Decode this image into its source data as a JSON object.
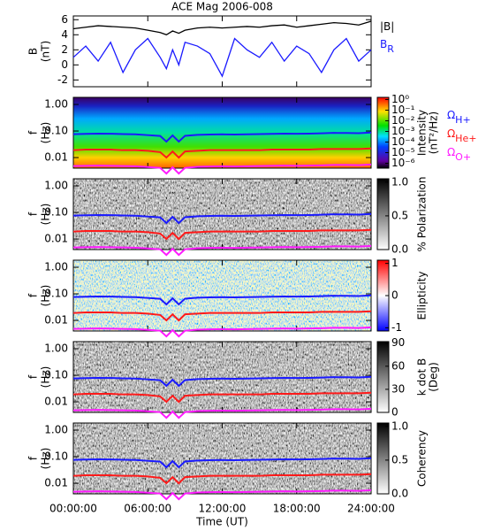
{
  "chart_data": [
    {
      "type": "line",
      "title": "ACE Mag 2006-008",
      "ylabel": [
        "B",
        "(nT)"
      ],
      "x": [
        0,
        1,
        2,
        3,
        4,
        5,
        6,
        7,
        7.5,
        8,
        8.5,
        9,
        10,
        11,
        12,
        13,
        14,
        15,
        16,
        17,
        18,
        19,
        20,
        21,
        22,
        23,
        24
      ],
      "xlim": [
        0,
        24
      ],
      "xticks": [
        0,
        6,
        12,
        18,
        24
      ],
      "ylim": [
        -2.9,
        6.5
      ],
      "yticks": [
        -2,
        0,
        2,
        4,
        6
      ],
      "series": [
        {
          "name": "|B|",
          "color": "#000000",
          "values": [
            4.8,
            5.0,
            5.2,
            5.1,
            5.0,
            4.9,
            4.6,
            4.3,
            4.0,
            4.5,
            4.2,
            4.6,
            4.9,
            5.0,
            4.9,
            5.0,
            5.1,
            5.0,
            5.2,
            5.3,
            5.0,
            5.2,
            5.4,
            5.6,
            5.5,
            5.3,
            5.8
          ]
        },
        {
          "name": "B",
          "name_sub": "R",
          "color": "#1a1aff",
          "values": [
            1.0,
            2.5,
            0.5,
            3.0,
            -1.0,
            2.0,
            3.5,
            1.0,
            -0.5,
            2.0,
            0.0,
            3.0,
            2.5,
            1.5,
            -1.5,
            3.5,
            2.0,
            1.0,
            3.0,
            0.5,
            2.5,
            1.5,
            -1.0,
            2.0,
            3.5,
            0.5,
            2.0
          ]
        }
      ]
    },
    {
      "type": "spectrogram",
      "ylabel": [
        "f",
        "(Hz)"
      ],
      "log_y": true,
      "colormap": "rainbow",
      "x": [
        0,
        1,
        2,
        3,
        4,
        5,
        6,
        7,
        7.5,
        8,
        8.5,
        9,
        10,
        11,
        12,
        13,
        14,
        15,
        16,
        17,
        18,
        19,
        20,
        21,
        22,
        23,
        24
      ],
      "xlim": [
        0,
        24
      ],
      "xticks": [
        0,
        6,
        12,
        18,
        24
      ],
      "ylim": [
        0.004,
        1.85
      ],
      "yticks": [
        {
          "value": 1,
          "label": "1.00"
        },
        {
          "value": 0.1,
          "label": "0.10"
        },
        {
          "value": 0.01,
          "label": "0.01"
        }
      ],
      "clabel": [
        "Intensity",
        "(nT²/Hz)"
      ],
      "clim": [
        3.5e-07,
        1.6
      ],
      "log_c": true,
      "cticks": [
        {
          "value": 1,
          "label": "10⁰"
        },
        {
          "value": 0.1,
          "label": "10⁻¹"
        },
        {
          "value": 0.01,
          "label": "10⁻²"
        },
        {
          "value": 0.001,
          "label": "10⁻³"
        },
        {
          "value": 0.0001,
          "label": "10⁻⁴"
        },
        {
          "value": 1e-05,
          "label": "10⁻⁵"
        },
        {
          "value": 1e-06,
          "label": "10⁻⁶"
        }
      ],
      "series": [
        {
          "name": "Ω",
          "name_sub": "H+",
          "color": "#1a1aff",
          "values": [
            0.076,
            0.078,
            0.08,
            0.079,
            0.077,
            0.075,
            0.07,
            0.065,
            0.04,
            0.068,
            0.04,
            0.066,
            0.072,
            0.074,
            0.075,
            0.074,
            0.075,
            0.077,
            0.078,
            0.08,
            0.079,
            0.08,
            0.082,
            0.085,
            0.084,
            0.083,
            0.088
          ]
        },
        {
          "name": "Ω",
          "name_sub": "He+",
          "color": "#ff1a1a",
          "values": [
            0.019,
            0.02,
            0.02,
            0.02,
            0.019,
            0.019,
            0.018,
            0.016,
            0.01,
            0.017,
            0.01,
            0.017,
            0.018,
            0.019,
            0.019,
            0.019,
            0.019,
            0.019,
            0.02,
            0.02,
            0.02,
            0.02,
            0.021,
            0.021,
            0.021,
            0.021,
            0.022
          ]
        },
        {
          "name": "Ω",
          "name_sub": "O+",
          "color": "#ff1aff",
          "values": [
            0.0048,
            0.0049,
            0.005,
            0.0049,
            0.0048,
            0.0047,
            0.0044,
            0.0041,
            0.0025,
            0.0043,
            0.0025,
            0.0041,
            0.0045,
            0.0046,
            0.0047,
            0.0046,
            0.0047,
            0.0048,
            0.0049,
            0.005,
            0.0049,
            0.005,
            0.0051,
            0.0053,
            0.0053,
            0.0052,
            0.0055
          ]
        }
      ]
    },
    {
      "type": "spectrogram",
      "ylabel": [
        "f",
        "(Hz)"
      ],
      "log_y": true,
      "colormap": "gray",
      "xlim": [
        0,
        24
      ],
      "xticks": [
        0,
        6,
        12,
        18,
        24
      ],
      "ylim": [
        0.004,
        1.85
      ],
      "yticks": [
        {
          "value": 1,
          "label": "1.00"
        },
        {
          "value": 0.1,
          "label": "0.10"
        },
        {
          "value": 0.01,
          "label": "0.01"
        }
      ],
      "clabel": [
        "% Polarization"
      ],
      "clim": [
        0,
        1.05
      ],
      "cticks": [
        {
          "value": 0,
          "label": "0.0"
        },
        {
          "value": 0.5,
          "label": "0.5"
        },
        {
          "value": 1,
          "label": "1.0"
        }
      ]
    },
    {
      "type": "spectrogram",
      "ylabel": [
        "f",
        "(Hz)"
      ],
      "log_y": true,
      "colormap": "bwr",
      "xlim": [
        0,
        24
      ],
      "xticks": [
        0,
        6,
        12,
        18,
        24
      ],
      "ylim": [
        0.004,
        1.85
      ],
      "yticks": [
        {
          "value": 1,
          "label": "1.00"
        },
        {
          "value": 0.1,
          "label": "0.10"
        },
        {
          "value": 0.01,
          "label": "0.01"
        }
      ],
      "clabel": [
        "Ellipticity"
      ],
      "clim": [
        -1.1,
        1.1
      ],
      "cticks": [
        -1,
        0,
        1
      ]
    },
    {
      "type": "spectrogram",
      "ylabel": [
        "f",
        "(Hz)"
      ],
      "log_y": true,
      "colormap": "gray",
      "xlim": [
        0,
        24
      ],
      "xticks": [
        0,
        6,
        12,
        18,
        24
      ],
      "ylim": [
        0.004,
        1.85
      ],
      "yticks": [
        {
          "value": 1,
          "label": "1.00"
        },
        {
          "value": 0.1,
          "label": "0.10"
        },
        {
          "value": 0.01,
          "label": "0.01"
        }
      ],
      "clabel": [
        "k dot B",
        "(Deg)"
      ],
      "clim": [
        0,
        92
      ],
      "cticks": [
        0,
        30,
        60,
        90
      ]
    },
    {
      "type": "spectrogram",
      "ylabel": [
        "f",
        "(Hz)"
      ],
      "log_y": true,
      "colormap": "gray",
      "xlim": [
        0,
        24
      ],
      "ylim": [
        0.004,
        1.85
      ],
      "yticks": [
        {
          "value": 1,
          "label": "1.00"
        },
        {
          "value": 0.1,
          "label": "0.10"
        },
        {
          "value": 0.01,
          "label": "0.01"
        }
      ],
      "clabel": [
        "Coherency"
      ],
      "clim": [
        0,
        1.05
      ],
      "cticks": [
        {
          "value": 0,
          "label": "0.0"
        },
        {
          "value": 0.5,
          "label": "0.5"
        },
        {
          "value": 1,
          "label": "1.0"
        }
      ],
      "xlabel": "Time (UT)",
      "xticks": [
        {
          "value": 0,
          "label": "00:00:00"
        },
        {
          "value": 6,
          "label": "06:00:00"
        },
        {
          "value": 12,
          "label": "12:00:00"
        },
        {
          "value": 18,
          "label": "18:00:00"
        },
        {
          "value": 24,
          "label": "24:00:00"
        }
      ]
    }
  ]
}
